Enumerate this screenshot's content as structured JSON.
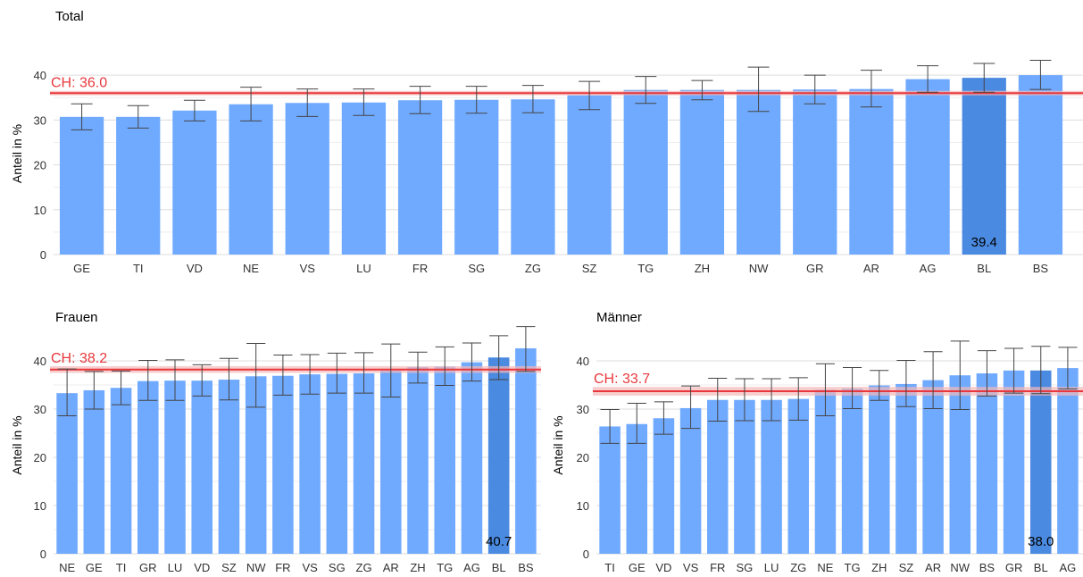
{
  "colors": {
    "bar": "#70aaff",
    "highlight_bar": "#4a8ae0",
    "reference_line": "#e8383d",
    "reference_band": "#f5b8b8",
    "grid": "#dddddd",
    "axis_text": "#333333",
    "error_bar": "#444444"
  },
  "chart_data": [
    {
      "type": "bar",
      "title": "Total",
      "ylabel": "Anteil in %",
      "xlabel": "",
      "ylim": [
        0,
        45
      ],
      "yticks": [
        0,
        10,
        20,
        30,
        40
      ],
      "grid": true,
      "reference": {
        "label": "CH: 36.0",
        "value": 36.0,
        "ci": [
          35.5,
          36.5
        ]
      },
      "highlight": {
        "category": "BL",
        "label": "39.4"
      },
      "categories": [
        "GE",
        "TI",
        "VD",
        "NE",
        "VS",
        "LU",
        "FR",
        "SG",
        "ZG",
        "SZ",
        "TG",
        "ZH",
        "NW",
        "GR",
        "AR",
        "AG",
        "BL",
        "BS"
      ],
      "values": [
        30.7,
        30.7,
        32.1,
        33.5,
        33.8,
        33.9,
        34.4,
        34.5,
        34.6,
        35.5,
        36.7,
        36.7,
        36.7,
        36.8,
        36.9,
        39.1,
        39.4,
        40.0
      ],
      "ci_low": [
        27.8,
        28.2,
        29.8,
        29.8,
        30.8,
        31.0,
        31.4,
        31.5,
        31.6,
        32.3,
        33.7,
        34.5,
        31.9,
        33.6,
        32.9,
        36.2,
        36.2,
        36.8
      ],
      "ci_high": [
        33.6,
        33.2,
        34.4,
        37.3,
        36.9,
        36.9,
        37.5,
        37.5,
        37.7,
        38.6,
        39.7,
        38.8,
        41.8,
        40.0,
        41.1,
        42.1,
        42.6,
        43.3
      ]
    },
    {
      "type": "bar",
      "title": "Frauen",
      "ylabel": "Anteil in %",
      "xlabel": "",
      "ylim": [
        0,
        45
      ],
      "yticks": [
        0,
        10,
        20,
        30,
        40
      ],
      "grid": true,
      "reference": {
        "label": "CH: 38.2",
        "value": 38.2,
        "ci": [
          37.5,
          38.9
        ]
      },
      "highlight": {
        "category": "BL",
        "label": "40.7"
      },
      "categories": [
        "NE",
        "GE",
        "TI",
        "GR",
        "LU",
        "VD",
        "SZ",
        "NW",
        "FR",
        "VS",
        "SG",
        "ZG",
        "AR",
        "ZH",
        "TG",
        "AG",
        "BL",
        "BS"
      ],
      "values": [
        33.3,
        33.9,
        34.4,
        35.8,
        35.9,
        35.9,
        36.1,
        36.8,
        36.9,
        37.2,
        37.3,
        37.4,
        38.0,
        38.7,
        38.8,
        39.7,
        40.7,
        42.6
      ],
      "ci_low": [
        28.6,
        30.0,
        30.9,
        31.8,
        31.8,
        32.7,
        31.9,
        30.4,
        32.9,
        33.1,
        33.3,
        33.3,
        32.5,
        35.4,
        34.9,
        35.8,
        36.1,
        37.8
      ],
      "ci_high": [
        38.3,
        37.8,
        37.9,
        40.1,
        40.2,
        39.2,
        40.5,
        43.6,
        41.2,
        41.3,
        41.6,
        41.7,
        43.5,
        41.8,
        42.9,
        43.7,
        45.2,
        47.1
      ]
    },
    {
      "type": "bar",
      "title": "Männer",
      "ylabel": "Anteil in %",
      "xlabel": "",
      "ylim": [
        0,
        45
      ],
      "yticks": [
        0,
        10,
        20,
        30,
        40
      ],
      "grid": true,
      "reference": {
        "label": "CH: 33.7",
        "value": 33.7,
        "ci": [
          32.8,
          34.6
        ]
      },
      "highlight": {
        "category": "BL",
        "label": "38.0"
      },
      "categories": [
        "TI",
        "GE",
        "VD",
        "VS",
        "FR",
        "SG",
        "LU",
        "ZG",
        "NE",
        "TG",
        "ZH",
        "SZ",
        "AR",
        "NW",
        "BS",
        "GR",
        "BL",
        "AG"
      ],
      "values": [
        26.4,
        26.9,
        28.1,
        30.2,
        31.9,
        31.9,
        31.9,
        32.1,
        34.0,
        34.3,
        34.9,
        35.2,
        36.0,
        37.0,
        37.4,
        38.0,
        38.0,
        38.5
      ],
      "ci_low": [
        22.9,
        22.9,
        24.8,
        26.0,
        27.5,
        27.6,
        27.6,
        27.7,
        28.6,
        30.1,
        31.8,
        30.5,
        30.1,
        29.9,
        32.7,
        33.3,
        33.2,
        34.2
      ],
      "ci_high": [
        29.9,
        31.2,
        31.5,
        34.8,
        36.4,
        36.3,
        36.3,
        36.5,
        39.4,
        38.6,
        38.0,
        40.1,
        41.9,
        44.1,
        42.1,
        42.6,
        43.0,
        42.8
      ]
    }
  ]
}
